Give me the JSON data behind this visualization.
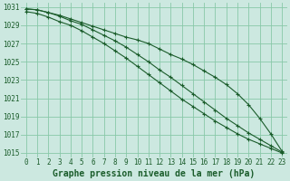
{
  "bg_color": "#cce8e0",
  "grid_color": "#88c8a8",
  "line_color": "#1a5c2a",
  "x": [
    0,
    1,
    2,
    3,
    4,
    5,
    6,
    7,
    8,
    9,
    10,
    11,
    12,
    13,
    14,
    15,
    16,
    17,
    18,
    19,
    20,
    21,
    22,
    23
  ],
  "line1": [
    1030.8,
    1030.7,
    1030.4,
    1030.1,
    1029.7,
    1029.3,
    1028.9,
    1028.5,
    1028.1,
    1027.7,
    1027.4,
    1027.0,
    1026.4,
    1025.8,
    1025.3,
    1024.7,
    1024.0,
    1023.3,
    1022.5,
    1021.5,
    1020.3,
    1018.8,
    1017.1,
    1015.2
  ],
  "line2": [
    1030.8,
    1030.7,
    1030.4,
    1030.0,
    1029.5,
    1029.1,
    1028.5,
    1027.9,
    1027.3,
    1026.6,
    1025.8,
    1025.0,
    1024.1,
    1023.3,
    1022.4,
    1021.5,
    1020.6,
    1019.7,
    1018.8,
    1018.0,
    1017.2,
    1016.5,
    1015.8,
    1015.1
  ],
  "line3": [
    1030.5,
    1030.3,
    1029.9,
    1029.4,
    1029.0,
    1028.4,
    1027.7,
    1027.0,
    1026.2,
    1025.4,
    1024.5,
    1023.6,
    1022.7,
    1021.8,
    1020.9,
    1020.1,
    1019.3,
    1018.5,
    1017.8,
    1017.1,
    1016.5,
    1016.0,
    1015.5,
    1015.0
  ],
  "ylim": [
    1014.5,
    1031.5
  ],
  "xlim": [
    -0.5,
    23.5
  ],
  "yticks": [
    1015,
    1017,
    1019,
    1021,
    1023,
    1025,
    1027,
    1029,
    1031
  ],
  "xticks": [
    0,
    1,
    2,
    3,
    4,
    5,
    6,
    7,
    8,
    9,
    10,
    11,
    12,
    13,
    14,
    15,
    16,
    17,
    18,
    19,
    20,
    21,
    22,
    23
  ],
  "xlabel": "Graphe pression niveau de la mer (hPa)",
  "xlabel_color": "#1a5c2a",
  "tick_color": "#1a5c2a",
  "tick_fontsize": 5.5,
  "xlabel_fontsize": 7.0,
  "lw": 0.8,
  "ms": 3.0
}
